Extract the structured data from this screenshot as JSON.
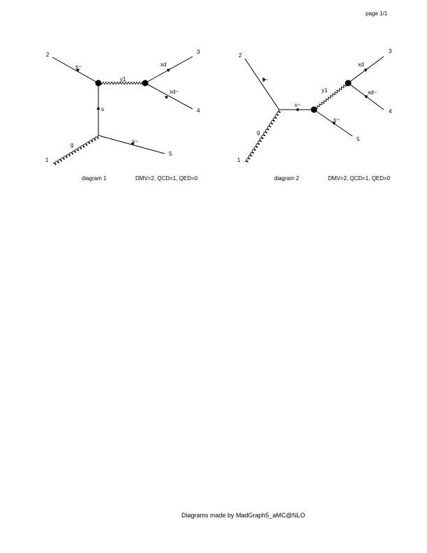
{
  "page": {
    "label": "page 1/1"
  },
  "footer": "Diagrams made by MadGraph5_aMC@NLO",
  "diagrams": [
    {
      "id": "d1",
      "caption": "diagram 1",
      "couplings": "DMV=2, QCD=1, QED=0",
      "externals": [
        "1",
        "2",
        "3",
        "4",
        "5"
      ],
      "particles": [
        "s~",
        "y1",
        "xd",
        "xd~",
        "s",
        "g",
        "s~"
      ]
    },
    {
      "id": "d2",
      "caption": "diagram 2",
      "couplings": "DMV=2, QCD=1, QED=0",
      "externals": [
        "1",
        "2",
        "3",
        "4",
        "5"
      ],
      "particles": [
        "s~",
        "s~",
        "y1",
        "xd",
        "xd~",
        "s~",
        "g"
      ]
    }
  ]
}
